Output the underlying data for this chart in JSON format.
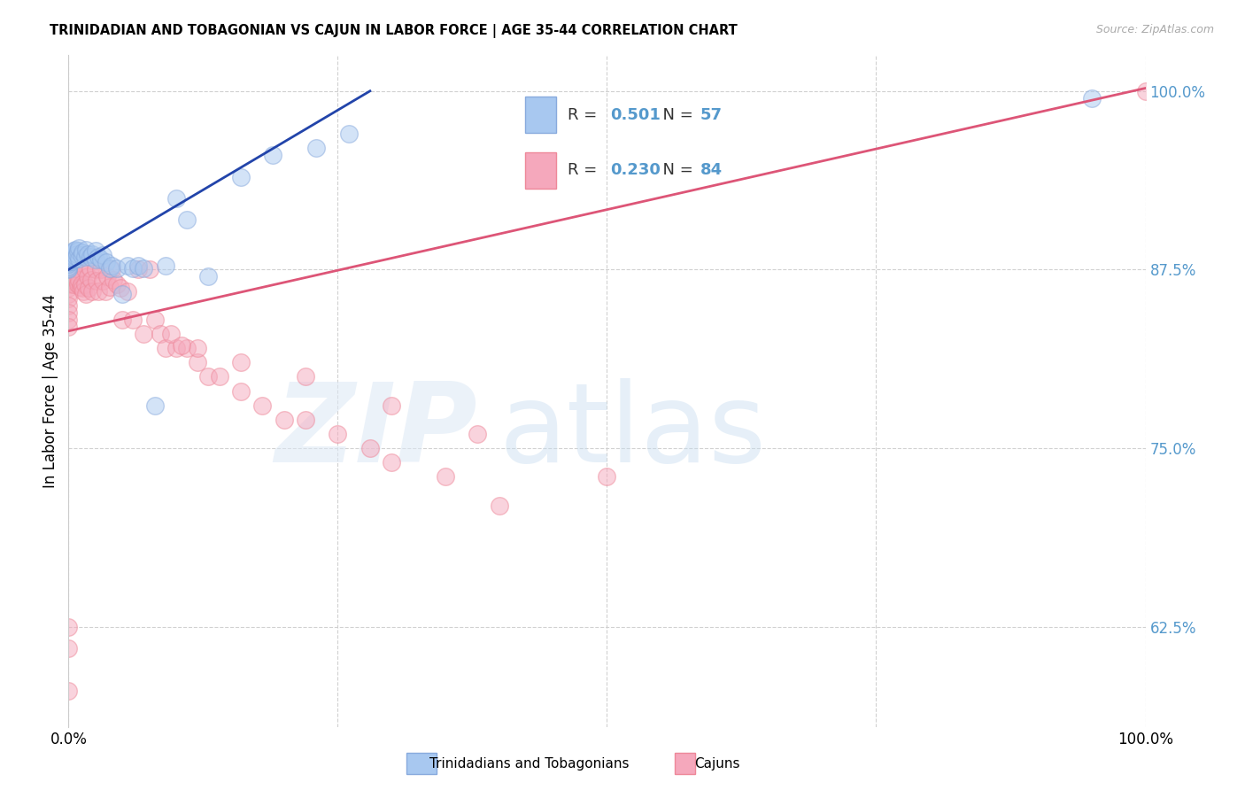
{
  "title": "TRINIDADIAN AND TOBAGONIAN VS CAJUN IN LABOR FORCE | AGE 35-44 CORRELATION CHART",
  "source": "Source: ZipAtlas.com",
  "ylabel": "In Labor Force | Age 35-44",
  "xlim": [
    0.0,
    1.0
  ],
  "ylim": [
    0.555,
    1.025
  ],
  "yticks": [
    0.625,
    0.75,
    0.875,
    1.0
  ],
  "ytick_labels": [
    "62.5%",
    "75.0%",
    "87.5%",
    "100.0%"
  ],
  "xtick_vals": [
    0.0,
    0.25,
    0.5,
    0.75,
    1.0
  ],
  "xtick_labels": [
    "0.0%",
    "",
    "",
    "",
    "100.0%"
  ],
  "blue_R": "0.501",
  "blue_N": "57",
  "pink_R": "0.230",
  "pink_N": "84",
  "blue_fill": "#a8c8f0",
  "pink_fill": "#f5a8bc",
  "blue_edge": "#88aadd",
  "pink_edge": "#ee8899",
  "blue_line": "#2244aa",
  "pink_line": "#dd5577",
  "tick_color": "#5599cc",
  "legend_label_blue": "Trinidadians and Tobagonians",
  "legend_label_pink": "Cajuns",
  "blue_trend_x0": 0.0,
  "blue_trend_y0": 0.875,
  "blue_trend_x1": 0.28,
  "blue_trend_y1": 1.0,
  "pink_trend_x0": 0.0,
  "pink_trend_y0": 0.832,
  "pink_trend_x1": 1.0,
  "pink_trend_y1": 1.002,
  "blue_x": [
    0.0,
    0.0,
    0.0,
    0.0,
    0.0,
    0.0,
    0.0,
    0.0,
    0.0,
    0.0,
    0.002,
    0.002,
    0.002,
    0.003,
    0.003,
    0.004,
    0.004,
    0.005,
    0.005,
    0.006,
    0.006,
    0.007,
    0.008,
    0.009,
    0.01,
    0.01,
    0.012,
    0.013,
    0.015,
    0.016,
    0.018,
    0.02,
    0.022,
    0.025,
    0.025,
    0.028,
    0.03,
    0.032,
    0.035,
    0.038,
    0.04,
    0.045,
    0.05,
    0.055,
    0.06,
    0.065,
    0.07,
    0.08,
    0.09,
    0.1,
    0.11,
    0.13,
    0.16,
    0.19,
    0.23,
    0.26,
    0.95
  ],
  "blue_y": [
    0.875,
    0.876,
    0.877,
    0.879,
    0.88,
    0.881,
    0.882,
    0.883,
    0.884,
    0.885,
    0.882,
    0.884,
    0.886,
    0.881,
    0.885,
    0.883,
    0.887,
    0.882,
    0.888,
    0.883,
    0.889,
    0.884,
    0.886,
    0.888,
    0.883,
    0.89,
    0.885,
    0.887,
    0.884,
    0.889,
    0.886,
    0.884,
    0.886,
    0.882,
    0.888,
    0.884,
    0.882,
    0.885,
    0.88,
    0.876,
    0.878,
    0.876,
    0.858,
    0.878,
    0.876,
    0.878,
    0.876,
    0.78,
    0.878,
    0.925,
    0.91,
    0.87,
    0.94,
    0.955,
    0.96,
    0.97,
    0.995
  ],
  "pink_x": [
    0.0,
    0.0,
    0.0,
    0.0,
    0.0,
    0.0,
    0.0,
    0.0,
    0.0,
    0.0,
    0.0,
    0.0,
    0.002,
    0.002,
    0.003,
    0.003,
    0.004,
    0.005,
    0.005,
    0.006,
    0.007,
    0.008,
    0.009,
    0.01,
    0.01,
    0.011,
    0.012,
    0.013,
    0.014,
    0.015,
    0.015,
    0.016,
    0.018,
    0.019,
    0.02,
    0.021,
    0.022,
    0.025,
    0.026,
    0.028,
    0.03,
    0.032,
    0.034,
    0.036,
    0.038,
    0.04,
    0.042,
    0.045,
    0.048,
    0.05,
    0.055,
    0.06,
    0.065,
    0.07,
    0.075,
    0.08,
    0.085,
    0.09,
    0.1,
    0.11,
    0.12,
    0.13,
    0.14,
    0.16,
    0.18,
    0.2,
    0.22,
    0.25,
    0.28,
    0.3,
    0.35,
    0.4,
    0.12,
    0.16,
    0.22,
    0.3,
    0.38,
    0.5,
    1.0,
    0.0,
    0.0,
    0.0,
    0.095,
    0.105
  ],
  "pink_y": [
    0.875,
    0.873,
    0.871,
    0.868,
    0.865,
    0.862,
    0.858,
    0.855,
    0.85,
    0.845,
    0.84,
    0.835,
    0.874,
    0.87,
    0.873,
    0.868,
    0.872,
    0.876,
    0.865,
    0.871,
    0.869,
    0.867,
    0.865,
    0.875,
    0.868,
    0.863,
    0.865,
    0.862,
    0.86,
    0.875,
    0.865,
    0.858,
    0.87,
    0.862,
    0.876,
    0.868,
    0.86,
    0.875,
    0.867,
    0.86,
    0.875,
    0.867,
    0.86,
    0.87,
    0.863,
    0.875,
    0.868,
    0.865,
    0.862,
    0.84,
    0.86,
    0.84,
    0.875,
    0.83,
    0.875,
    0.84,
    0.83,
    0.82,
    0.82,
    0.82,
    0.81,
    0.8,
    0.8,
    0.79,
    0.78,
    0.77,
    0.77,
    0.76,
    0.75,
    0.74,
    0.73,
    0.71,
    0.82,
    0.81,
    0.8,
    0.78,
    0.76,
    0.73,
    1.0,
    0.625,
    0.58,
    0.61,
    0.83,
    0.822
  ]
}
